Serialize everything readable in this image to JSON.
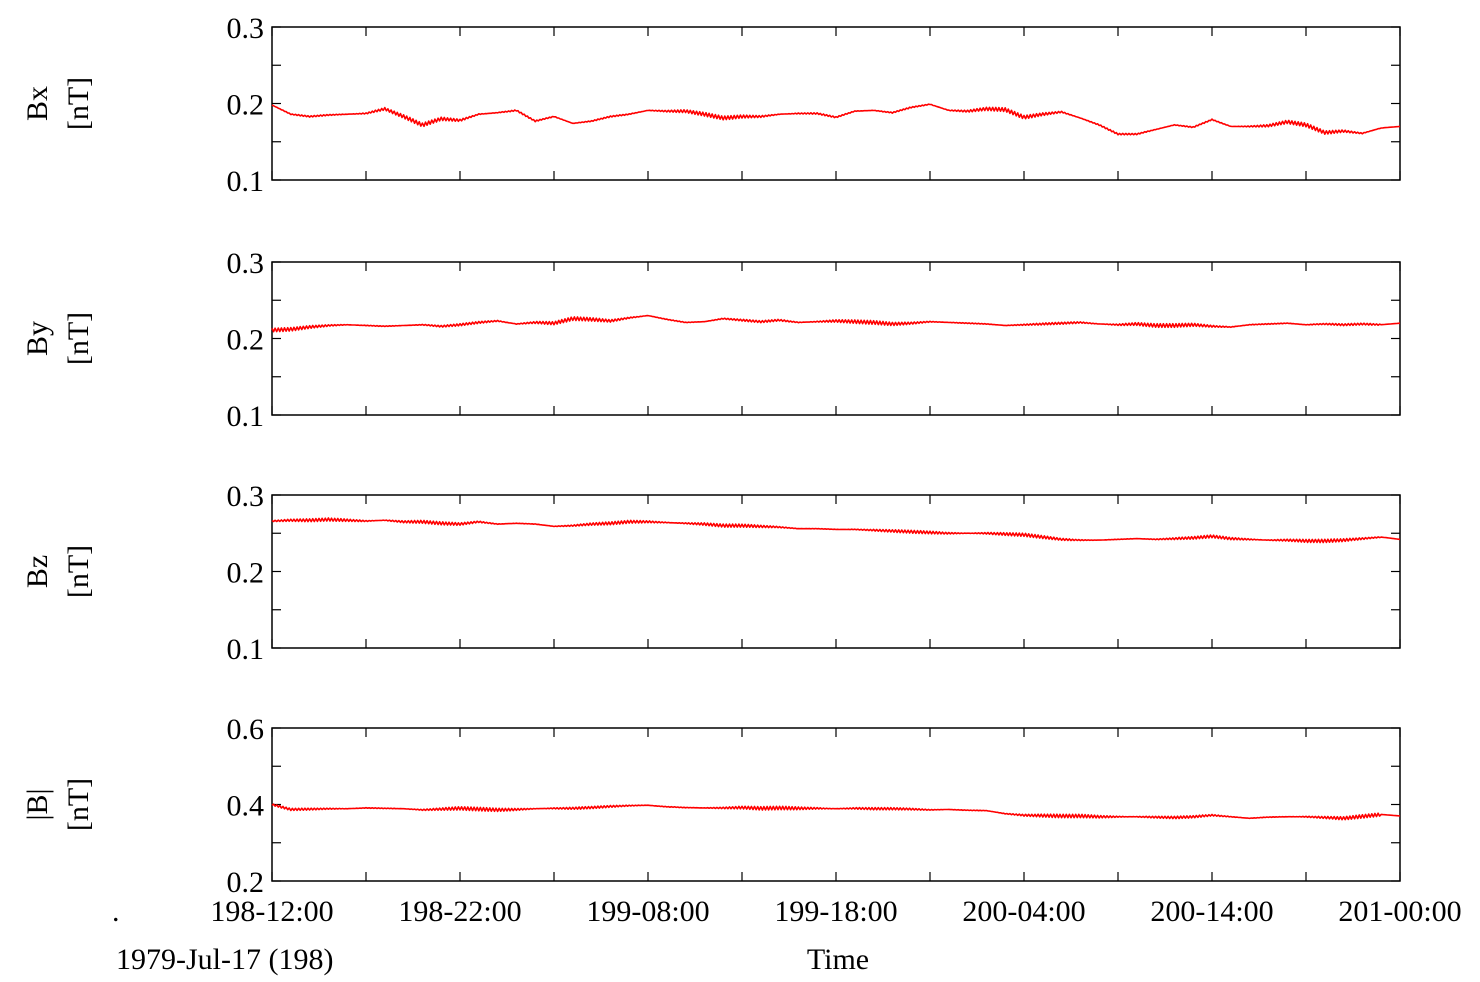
{
  "chart_data": {
    "type": "line",
    "xlabel": "Time",
    "start_label": ".",
    "date_label": "1979-Jul-17 (198)",
    "x_ticks": [
      "198-12:00",
      "198-22:00",
      "199-08:00",
      "199-18:00",
      "200-04:00",
      "200-14:00",
      "201-00:00"
    ],
    "x_range": [
      "198-12:00",
      "201-00:00"
    ],
    "line_color": "#ff0000",
    "grid": false,
    "panels": [
      {
        "name_label": "Bx",
        "unit_label": "[nT]",
        "ylim": [
          0.1,
          0.3
        ],
        "y_ticks": [
          "0.3",
          "0.2",
          "0.1"
        ],
        "x_hours": [
          0,
          1,
          2,
          3,
          4,
          5,
          6,
          7,
          8,
          9,
          10,
          11,
          12,
          13,
          14,
          15,
          16,
          17,
          18,
          19,
          20,
          21,
          22,
          23,
          24,
          25,
          26,
          27,
          28,
          29,
          30,
          31,
          32,
          33,
          34,
          35,
          36,
          37,
          38,
          39,
          40,
          41,
          42,
          43,
          44,
          45,
          46,
          47,
          48,
          49,
          50,
          51,
          52,
          53,
          54,
          55,
          56,
          57,
          58,
          59,
          60
        ],
        "values": [
          0.198,
          0.186,
          0.183,
          0.185,
          0.186,
          0.187,
          0.193,
          0.183,
          0.172,
          0.18,
          0.178,
          0.186,
          0.188,
          0.191,
          0.177,
          0.183,
          0.174,
          0.177,
          0.183,
          0.186,
          0.191,
          0.19,
          0.19,
          0.186,
          0.181,
          0.183,
          0.183,
          0.186,
          0.187,
          0.187,
          0.182,
          0.19,
          0.191,
          0.188,
          0.195,
          0.199,
          0.191,
          0.19,
          0.193,
          0.192,
          0.182,
          0.186,
          0.189,
          0.181,
          0.172,
          0.16,
          0.16,
          0.166,
          0.172,
          0.169,
          0.179,
          0.17,
          0.17,
          0.171,
          0.176,
          0.172,
          0.162,
          0.164,
          0.161,
          0.168,
          0.17
        ]
      },
      {
        "name_label": "By",
        "unit_label": "[nT]",
        "ylim": [
          0.1,
          0.3
        ],
        "y_ticks": [
          "0.3",
          "0.2",
          "0.1"
        ],
        "x_hours": [
          0,
          1,
          2,
          3,
          4,
          5,
          6,
          7,
          8,
          9,
          10,
          11,
          12,
          13,
          14,
          15,
          16,
          17,
          18,
          19,
          20,
          21,
          22,
          23,
          24,
          25,
          26,
          27,
          28,
          29,
          30,
          31,
          32,
          33,
          34,
          35,
          36,
          37,
          38,
          39,
          40,
          41,
          42,
          43,
          44,
          45,
          46,
          47,
          48,
          49,
          50,
          51,
          52,
          53,
          54,
          55,
          56,
          57,
          58,
          59,
          60
        ],
        "values": [
          0.211,
          0.212,
          0.215,
          0.217,
          0.218,
          0.217,
          0.216,
          0.217,
          0.218,
          0.216,
          0.218,
          0.221,
          0.223,
          0.219,
          0.221,
          0.22,
          0.226,
          0.225,
          0.223,
          0.227,
          0.23,
          0.225,
          0.221,
          0.222,
          0.226,
          0.224,
          0.222,
          0.224,
          0.221,
          0.222,
          0.223,
          0.222,
          0.221,
          0.219,
          0.22,
          0.222,
          0.221,
          0.22,
          0.219,
          0.217,
          0.218,
          0.219,
          0.22,
          0.221,
          0.219,
          0.218,
          0.219,
          0.217,
          0.217,
          0.218,
          0.216,
          0.215,
          0.218,
          0.219,
          0.22,
          0.218,
          0.219,
          0.218,
          0.219,
          0.218,
          0.22
        ]
      },
      {
        "name_label": "Bz",
        "unit_label": "[nT]",
        "ylim": [
          0.1,
          0.3
        ],
        "y_ticks": [
          "0.3",
          "0.2",
          "0.1"
        ],
        "x_hours": [
          0,
          1,
          2,
          3,
          4,
          5,
          6,
          7,
          8,
          9,
          10,
          11,
          12,
          13,
          14,
          15,
          16,
          17,
          18,
          19,
          20,
          21,
          22,
          23,
          24,
          25,
          26,
          27,
          28,
          29,
          30,
          31,
          32,
          33,
          34,
          35,
          36,
          37,
          38,
          39,
          40,
          41,
          42,
          43,
          44,
          45,
          46,
          47,
          48,
          49,
          50,
          51,
          52,
          53,
          54,
          55,
          56,
          57,
          58,
          59,
          60
        ],
        "values": [
          0.266,
          0.267,
          0.267,
          0.268,
          0.267,
          0.266,
          0.267,
          0.265,
          0.265,
          0.263,
          0.262,
          0.265,
          0.262,
          0.263,
          0.262,
          0.259,
          0.26,
          0.262,
          0.263,
          0.265,
          0.265,
          0.264,
          0.263,
          0.262,
          0.26,
          0.26,
          0.259,
          0.258,
          0.256,
          0.256,
          0.255,
          0.255,
          0.254,
          0.253,
          0.252,
          0.251,
          0.25,
          0.25,
          0.25,
          0.249,
          0.248,
          0.245,
          0.242,
          0.241,
          0.241,
          0.242,
          0.243,
          0.242,
          0.243,
          0.244,
          0.246,
          0.243,
          0.242,
          0.241,
          0.241,
          0.24,
          0.24,
          0.241,
          0.243,
          0.245,
          0.242
        ]
      },
      {
        "name_label": "|B|",
        "unit_label": "[nT]",
        "ylim": [
          0.2,
          0.6
        ],
        "y_ticks": [
          "0.6",
          "0.4",
          "0.2"
        ],
        "x_hours": [
          0,
          1,
          2,
          3,
          4,
          5,
          6,
          7,
          8,
          9,
          10,
          11,
          12,
          13,
          14,
          15,
          16,
          17,
          18,
          19,
          20,
          21,
          22,
          23,
          24,
          25,
          26,
          27,
          28,
          29,
          30,
          31,
          32,
          33,
          34,
          35,
          36,
          37,
          38,
          39,
          40,
          41,
          42,
          43,
          44,
          45,
          46,
          47,
          48,
          49,
          50,
          51,
          52,
          53,
          54,
          55,
          56,
          57,
          58,
          59,
          60
        ],
        "values": [
          0.4,
          0.387,
          0.388,
          0.389,
          0.389,
          0.391,
          0.39,
          0.389,
          0.386,
          0.388,
          0.39,
          0.388,
          0.386,
          0.387,
          0.389,
          0.39,
          0.39,
          0.392,
          0.395,
          0.397,
          0.398,
          0.394,
          0.392,
          0.391,
          0.391,
          0.392,
          0.39,
          0.391,
          0.39,
          0.39,
          0.389,
          0.39,
          0.389,
          0.389,
          0.388,
          0.386,
          0.387,
          0.385,
          0.384,
          0.376,
          0.372,
          0.371,
          0.37,
          0.37,
          0.368,
          0.368,
          0.368,
          0.367,
          0.366,
          0.368,
          0.372,
          0.368,
          0.364,
          0.367,
          0.368,
          0.368,
          0.366,
          0.364,
          0.369,
          0.374,
          0.37
        ]
      }
    ]
  }
}
